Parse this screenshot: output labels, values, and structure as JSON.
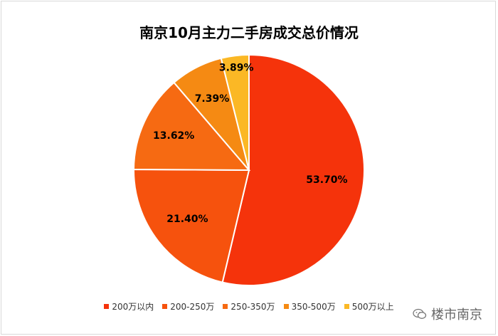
{
  "chart_data": {
    "type": "pie",
    "title": "南京10月主力二手房成交总价情况",
    "categories": [
      "200万以内",
      "200-250万",
      "250-350万",
      "350-500万",
      "500万以上"
    ],
    "values": [
      53.7,
      21.4,
      13.62,
      7.39,
      3.89
    ],
    "value_labels": [
      "53.70%",
      "21.40%",
      "13.62%",
      "7.39%",
      "3.89%"
    ],
    "colors": [
      "#F5330B",
      "#F6520D",
      "#F66A12",
      "#F58A13",
      "#FBB825"
    ],
    "legend_position": "bottom"
  },
  "watermark": {
    "text": "楼市南京",
    "icon": "wechat-icon"
  }
}
